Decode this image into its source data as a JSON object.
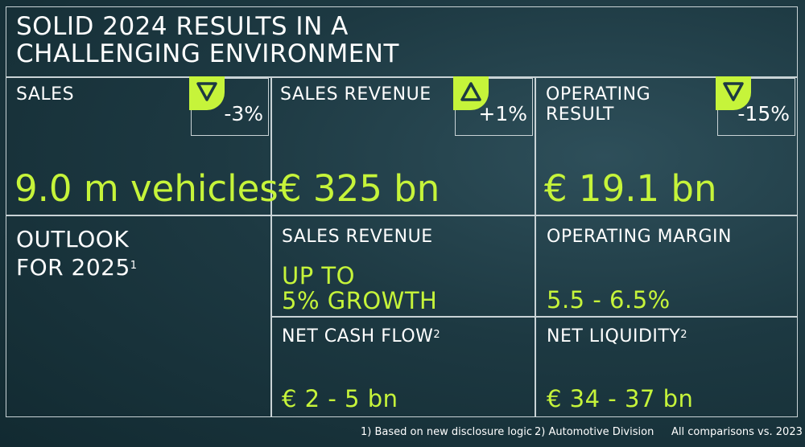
{
  "title": {
    "line1": "SOLID 2024 RESULTS IN A",
    "line2": "CHALLENGING ENVIRONMENT"
  },
  "kpis": [
    {
      "label": "SALES",
      "value": "9.0 m vehicles",
      "change": "-3%",
      "direction": "down",
      "arrow_icon": "triangle-down-icon"
    },
    {
      "label": "SALES REVENUE",
      "value": "€ 325 bn",
      "change": "+1%",
      "direction": "up",
      "arrow_icon": "triangle-up-icon"
    },
    {
      "label_line1": "OPERATING",
      "label_line2": "RESULT",
      "value": "€ 19.1 bn",
      "change": "-15%",
      "direction": "down",
      "arrow_icon": "triangle-down-icon"
    }
  ],
  "outlook": {
    "title_line1": "OUTLOOK",
    "title_line2": "FOR 2025",
    "title_sup": "1",
    "sales_revenue": {
      "label": "SALES REVENUE",
      "value_line1": "UP TO",
      "value_line2": "5% GROWTH"
    },
    "operating_margin": {
      "label": "OPERATING MARGIN",
      "value": "5.5 - 6.5%"
    },
    "net_cash_flow": {
      "label": "NET CASH FLOW",
      "sup": "2",
      "value": "€ 2 - 5 bn"
    },
    "net_liquidity": {
      "label": "NET LIQUIDITY",
      "sup": "2",
      "value": "€ 34 - 37 bn"
    }
  },
  "footnotes": {
    "note1": "1)  Based on new disclosure logic",
    "note2": "2) Automotive Division",
    "comparison": "All comparisons vs. 2023"
  },
  "colors": {
    "accent": "#c6f43a",
    "background": "#1d3942",
    "lines": "#c9d3d6",
    "text": "#ffffff"
  }
}
